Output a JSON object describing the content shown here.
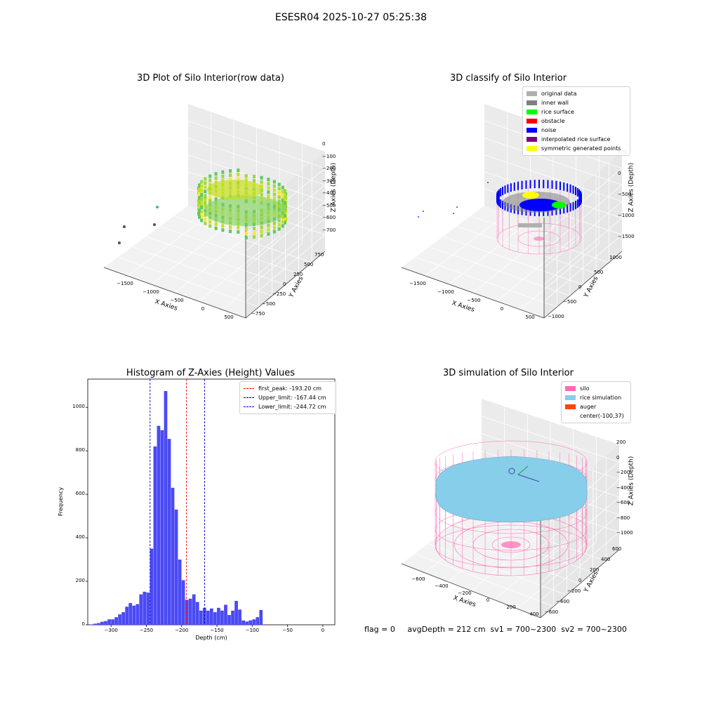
{
  "figure": {
    "title": "ESESR04 2025-10-27 05:25:38",
    "footer": "flag = 0     avgDepth = 212 cm  sv1 = 700~2300  sv2 = 700~2300"
  },
  "colors": {
    "histogram_bar": "#4a4af5",
    "peak_line": "#ff0000",
    "limit_line": "#0000cc",
    "silo": "#ff69b4",
    "rice_simulation": "#87ceeb",
    "auger": "#ff4500",
    "original_data": "#b0b0b0",
    "inner_wall": "#808080",
    "rice_surface": "#00ff00",
    "obstacle": "#ff0000",
    "noise": "#0000ff",
    "interpolated_rice_surface": "#800080",
    "symmetric_generated_points": "#ffff00"
  },
  "chart_data": [
    {
      "type": "scatter",
      "title": "3D Plot of Silo Interior(row data)",
      "xlabel": "X Axies",
      "ylabel": "Y Axies",
      "zlabel": "Z Axies (Depth)",
      "x_ticks": [
        "−1500",
        "−1000",
        "−500",
        "0",
        "500"
      ],
      "y_ticks": [
        "−750",
        "−500",
        "−250",
        "0",
        "250",
        "500",
        "750"
      ],
      "z_ticks": [
        "0",
        "−100",
        "−200",
        "−300",
        "−400",
        "−500",
        "−600",
        "−700"
      ],
      "colormap": "viridis"
    },
    {
      "type": "scatter",
      "title": "3D classify of Silo Interior",
      "xlabel": "X Axies",
      "ylabel": "Y Axies",
      "zlabel": "Z Axies (Depth)",
      "x_ticks": [
        "−1500",
        "−1000",
        "−500",
        "0",
        "500"
      ],
      "y_ticks": [
        "−1000",
        "−500",
        "0",
        "500",
        "1000"
      ],
      "z_ticks": [
        "500",
        "0",
        "−500",
        "−1000",
        "−1500"
      ],
      "legend": [
        {
          "label": "original data",
          "color": "#b0b0b0"
        },
        {
          "label": "inner wall",
          "color": "#808080"
        },
        {
          "label": "rice surface",
          "color": "#00ff00"
        },
        {
          "label": "obstacle",
          "color": "#ff0000"
        },
        {
          "label": "noise",
          "color": "#0000ff"
        },
        {
          "label": "interpolated rice surface",
          "color": "#800080"
        },
        {
          "label": "symmetric generated points",
          "color": "#ffff00"
        }
      ]
    },
    {
      "type": "bar",
      "title": "Histogram of Z-Axies (Height) Values",
      "xlabel": "Depth (cm)",
      "ylabel": "Frequency",
      "xlim": [
        -333,
        17
      ],
      "ylim": [
        0,
        1130
      ],
      "x_ticks": [
        -300,
        -250,
        -200,
        -150,
        -100,
        -50,
        0
      ],
      "y_ticks": [
        0,
        200,
        400,
        600,
        800,
        1000
      ],
      "bin_start": -330,
      "bin_width": 5,
      "values": [
        2,
        5,
        8,
        14,
        17,
        25,
        25,
        35,
        48,
        58,
        83,
        100,
        88,
        95,
        140,
        152,
        148,
        350,
        820,
        915,
        895,
        1075,
        855,
        630,
        530,
        300,
        205,
        115,
        120,
        140,
        105,
        65,
        78,
        65,
        75,
        58,
        78,
        65,
        92,
        45,
        65,
        110,
        70,
        20,
        15,
        20,
        25,
        35,
        68
      ],
      "vlines": [
        {
          "label": "first_peak: -193.20 cm",
          "x": -193.2,
          "color": "#ff0000"
        },
        {
          "label": "Upper_limit: -167.44 cm",
          "x": -167.44,
          "color": "#0000cc"
        },
        {
          "label": "Lower_limit: -244.72 cm",
          "x": -244.72,
          "color": "#0000cc"
        }
      ]
    },
    {
      "type": "scatter",
      "title": "3D simulation of Silo Interior",
      "xlabel": "X Axies",
      "ylabel": "Y Axies",
      "zlabel": "Z Axies (Depth)",
      "x_ticks": [
        "−600",
        "−400",
        "−200",
        "0",
        "200",
        "400"
      ],
      "y_ticks": [
        "−600",
        "−400",
        "−200",
        "0",
        "200",
        "400",
        "600"
      ],
      "z_ticks": [
        "200",
        "0",
        "−200",
        "−400",
        "−600",
        "−800",
        "−1000"
      ],
      "legend": [
        {
          "label": "silo",
          "color": "#ff69b4"
        },
        {
          "label": "rice simulation",
          "color": "#87ceeb"
        },
        {
          "label": "auger",
          "color": "#ff4500"
        },
        {
          "label": "center(-100,37)",
          "color": ""
        }
      ]
    }
  ]
}
